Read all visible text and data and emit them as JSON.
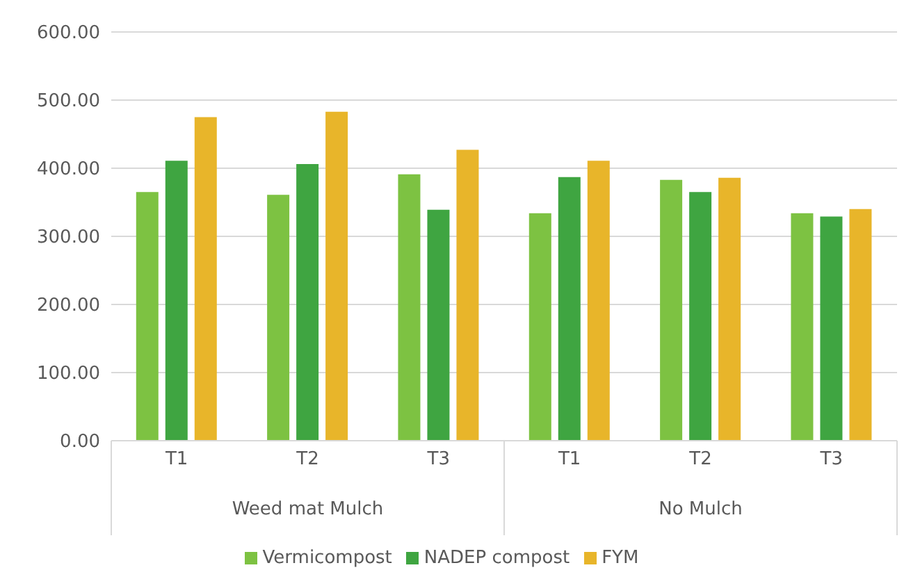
{
  "chart_data": {
    "type": "bar",
    "categories": [
      "T1",
      "T2",
      "T3",
      "T1",
      "T2",
      "T3"
    ],
    "series": [
      {
        "name": "Vermicompost",
        "color": "#7dc242",
        "values": [
          365,
          361,
          391,
          334,
          383,
          334
        ]
      },
      {
        "name": "NADEP compost",
        "color": "#3fa541",
        "values": [
          411,
          406,
          339,
          387,
          365,
          329
        ]
      },
      {
        "name": "FYM",
        "color": "#e8b52a",
        "values": [
          475,
          483,
          427,
          411,
          386,
          340
        ]
      }
    ],
    "ylim": [
      0,
      600
    ],
    "yticks": [
      {
        "value": 0,
        "label": "0.00"
      },
      {
        "value": 100,
        "label": "100.00"
      },
      {
        "value": 200,
        "label": "200.00"
      },
      {
        "value": 300,
        "label": "300.00"
      },
      {
        "value": 400,
        "label": "400.00"
      },
      {
        "value": 500,
        "label": "500.00"
      },
      {
        "value": 600,
        "label": "600.00"
      }
    ],
    "grid": "y",
    "legend": "bottom",
    "annotations": [
      "Weed mat Mulch",
      "No Mulch"
    ]
  }
}
